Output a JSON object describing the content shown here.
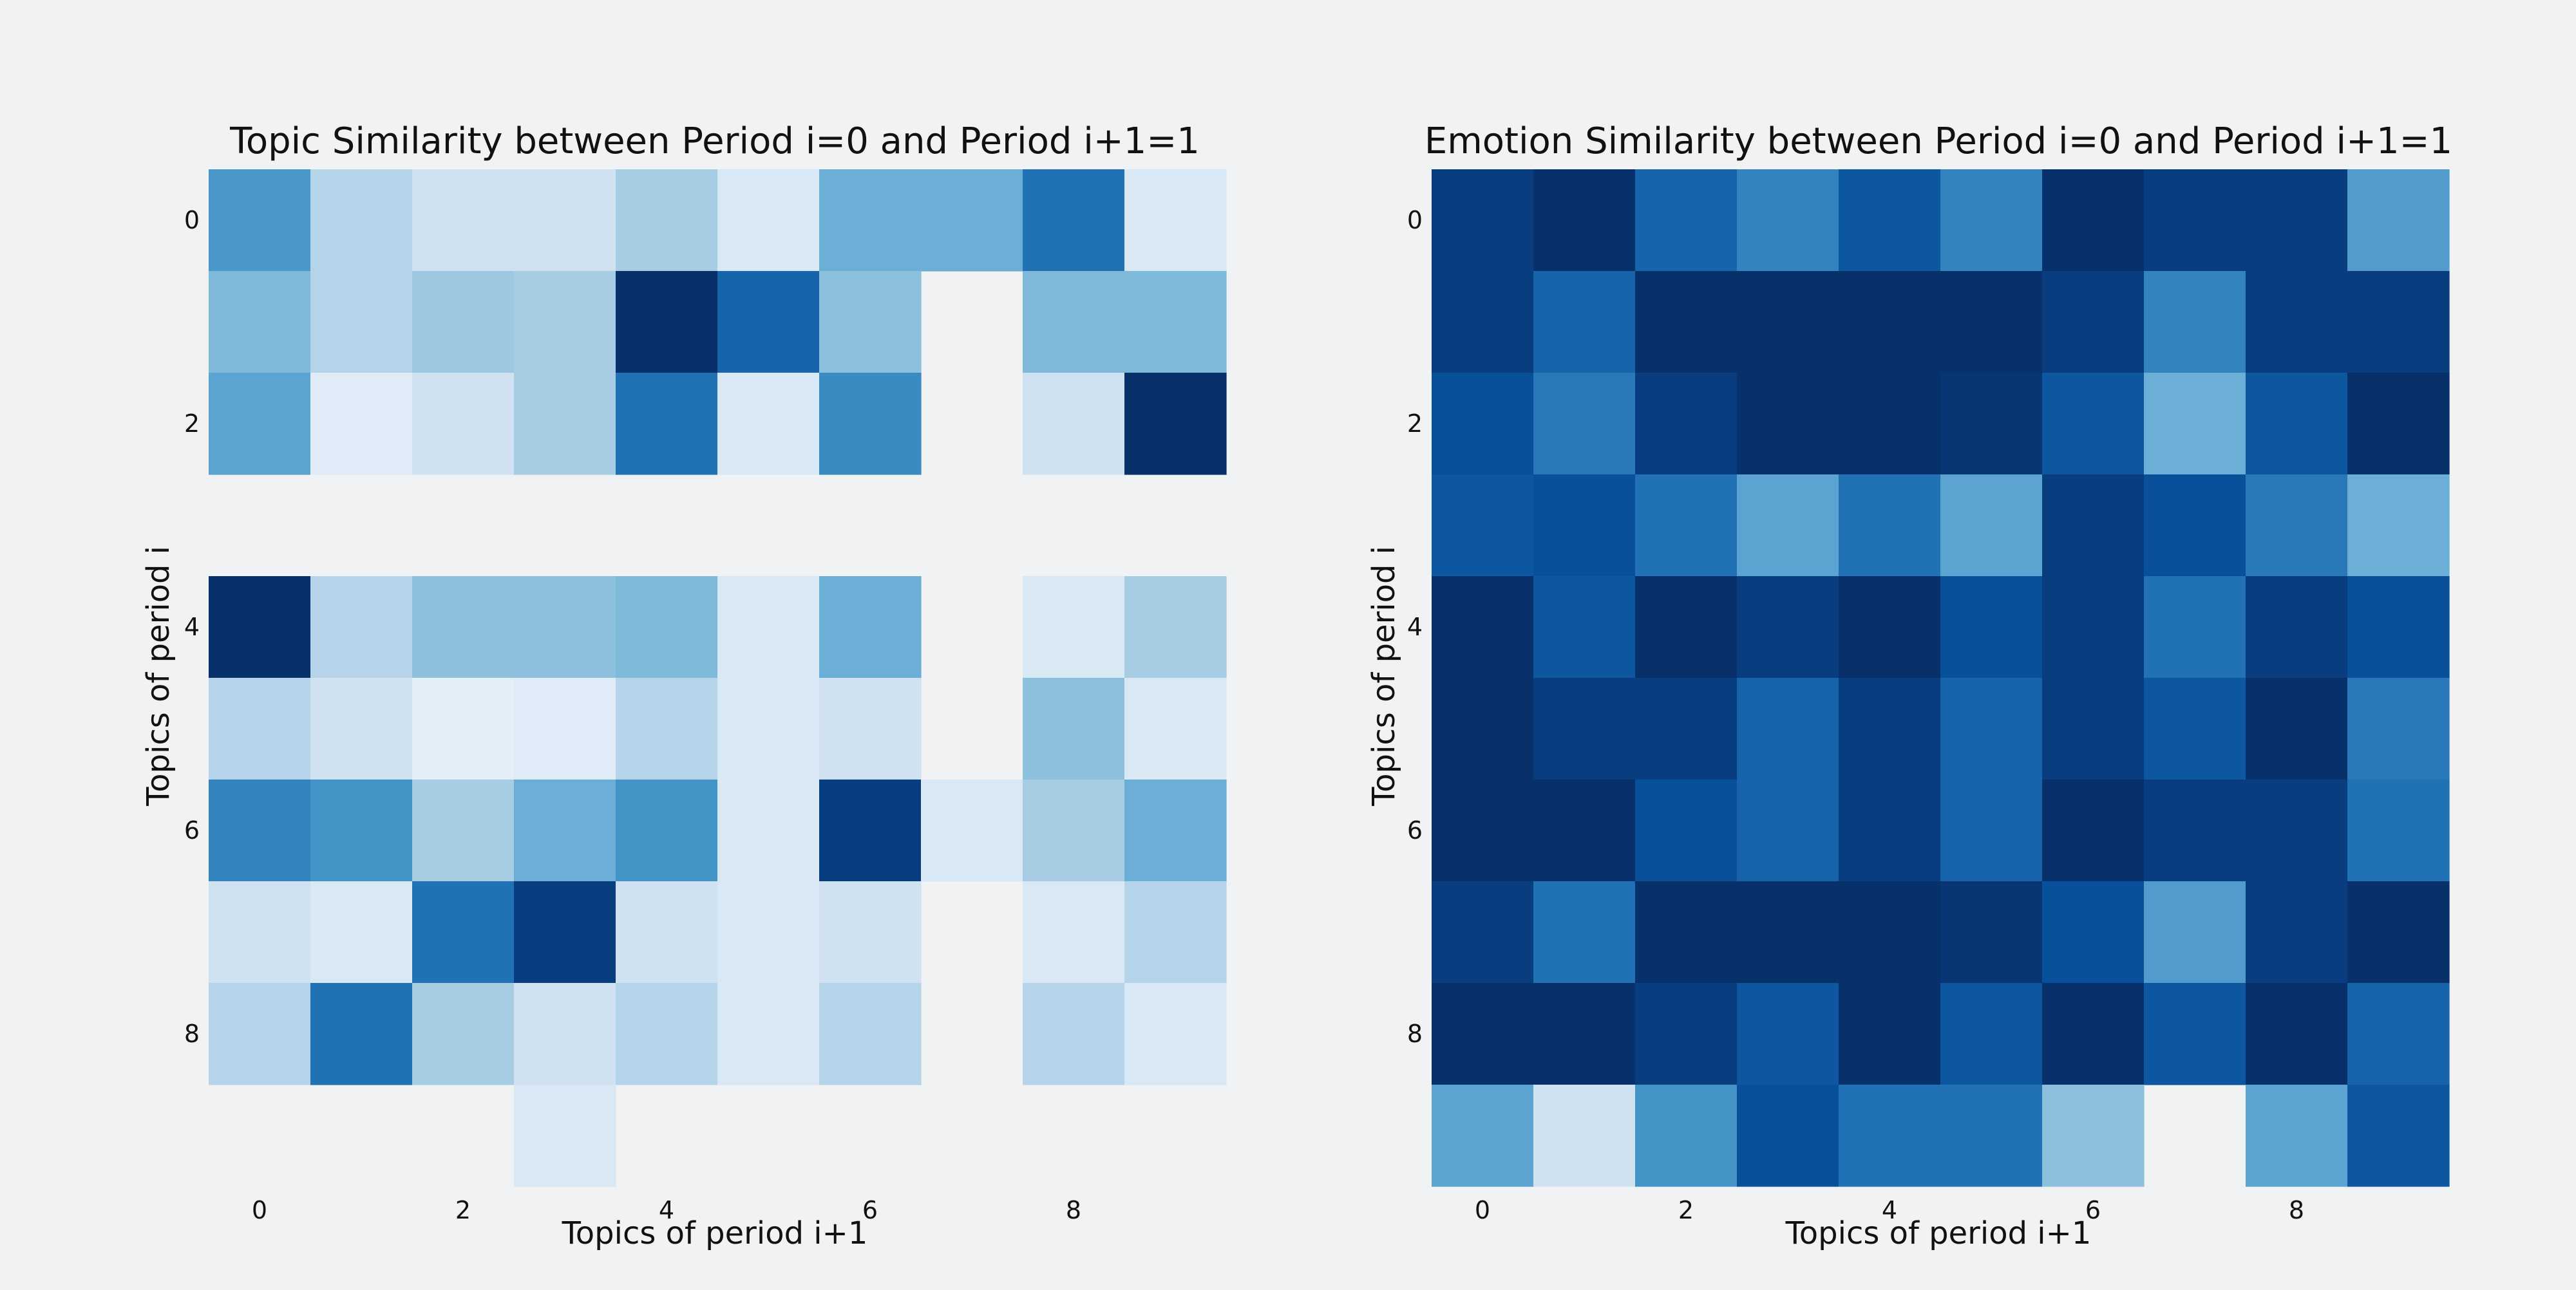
{
  "colors": {
    "background": "#f0f2f4",
    "colormap": "Blues",
    "colormap_low": "#f7fbff",
    "colormap_high": "#08306b"
  },
  "chart_data": [
    {
      "type": "heatmap",
      "title": "Topic Similarity between Period i=0 and Period i+1=1",
      "xlabel": "Topics of period i+1",
      "ylabel": "Topics of period i",
      "x": [
        0,
        1,
        2,
        3,
        4,
        5,
        6,
        7,
        8,
        9
      ],
      "y": [
        0,
        1,
        2,
        3,
        4,
        5,
        6,
        7,
        8,
        9
      ],
      "xticks": [
        0,
        2,
        4,
        6,
        8
      ],
      "yticks": [
        0,
        2,
        4,
        6,
        8
      ],
      "colormap": "Blues",
      "missing_cells_shown_as_background": true,
      "values": [
        [
          0.6,
          0.3,
          0.2,
          0.2,
          0.35,
          0.15,
          0.5,
          0.5,
          0.75,
          0.15
        ],
        [
          0.45,
          0.3,
          0.38,
          0.35,
          1.0,
          0.8,
          0.42,
          null,
          0.45,
          0.45
        ],
        [
          0.55,
          0.12,
          0.2,
          0.35,
          0.75,
          0.15,
          0.65,
          null,
          0.2,
          1.0
        ],
        [
          null,
          null,
          null,
          null,
          null,
          null,
          null,
          null,
          null,
          null
        ],
        [
          1.0,
          0.3,
          0.42,
          0.42,
          0.45,
          0.15,
          0.5,
          null,
          0.15,
          0.35
        ],
        [
          0.3,
          0.2,
          0.1,
          0.12,
          0.3,
          0.15,
          0.2,
          null,
          0.42,
          0.15
        ],
        [
          0.68,
          0.62,
          0.35,
          0.5,
          0.62,
          0.15,
          0.95,
          0.15,
          0.35,
          0.5
        ],
        [
          0.2,
          0.15,
          0.75,
          0.95,
          0.2,
          0.15,
          0.2,
          null,
          0.15,
          0.3
        ],
        [
          0.3,
          0.75,
          0.35,
          0.2,
          0.3,
          0.15,
          0.3,
          null,
          0.3,
          0.15
        ],
        [
          null,
          null,
          null,
          0.15,
          null,
          null,
          null,
          null,
          null,
          null
        ]
      ]
    },
    {
      "type": "heatmap",
      "title": "Emotion Similarity between Period i=0 and Period i+1=1",
      "xlabel": "Topics of period i+1",
      "ylabel": "Topics of period i",
      "x": [
        0,
        1,
        2,
        3,
        4,
        5,
        6,
        7,
        8,
        9
      ],
      "y": [
        0,
        1,
        2,
        3,
        4,
        5,
        6,
        7,
        8,
        9
      ],
      "xticks": [
        0,
        2,
        4,
        6,
        8
      ],
      "yticks": [
        0,
        2,
        4,
        6,
        8
      ],
      "colormap": "Blues",
      "missing_cells_shown_as_background": true,
      "values": [
        [
          0.95,
          1.0,
          0.8,
          0.68,
          0.85,
          0.68,
          1.0,
          0.95,
          0.95,
          0.58
        ],
        [
          0.95,
          0.8,
          1.0,
          1.0,
          1.0,
          1.0,
          0.95,
          0.68,
          0.95,
          0.95
        ],
        [
          0.88,
          0.72,
          0.95,
          1.0,
          1.0,
          0.98,
          0.85,
          0.5,
          0.85,
          1.0
        ],
        [
          0.85,
          0.88,
          0.75,
          0.55,
          0.75,
          0.55,
          0.95,
          0.88,
          0.72,
          0.5
        ],
        [
          1.0,
          0.85,
          1.0,
          0.95,
          1.0,
          0.88,
          0.95,
          0.75,
          0.95,
          0.88
        ],
        [
          1.0,
          0.95,
          0.95,
          0.8,
          0.95,
          0.8,
          0.95,
          0.85,
          1.0,
          0.72
        ],
        [
          1.0,
          1.0,
          0.88,
          0.8,
          0.95,
          0.8,
          1.0,
          0.95,
          0.95,
          0.75
        ],
        [
          0.95,
          0.75,
          1.0,
          1.0,
          1.0,
          0.98,
          0.88,
          0.58,
          0.95,
          1.0
        ],
        [
          1.0,
          1.0,
          0.95,
          0.85,
          1.0,
          0.85,
          1.0,
          0.85,
          1.0,
          0.8
        ],
        [
          0.55,
          0.2,
          0.62,
          0.88,
          0.75,
          0.75,
          0.42,
          null,
          0.55,
          0.85
        ]
      ]
    }
  ]
}
